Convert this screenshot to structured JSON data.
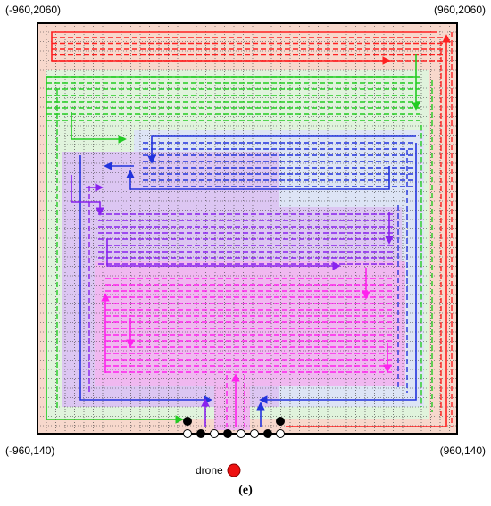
{
  "corners": {
    "top_left": "(-960,2060)",
    "top_right": "(960,2060)",
    "bottom_left": "(-960,140)",
    "bottom_right": "(960,140)"
  },
  "drone_label": "drone",
  "caption": "(e)",
  "colors": {
    "red": "#ff2020",
    "green": "#22cc22",
    "blue": "#2233dd",
    "violet": "#8822ee",
    "magenta": "#ff22ee",
    "red_zone": "#f7d8cc",
    "green_zone": "#e0f3dc",
    "blue_zone": "#dde4f5",
    "violet_zone": "#dcc6f2",
    "magenta_zone": "#f0b8f0",
    "drone": "#ee1111"
  }
}
